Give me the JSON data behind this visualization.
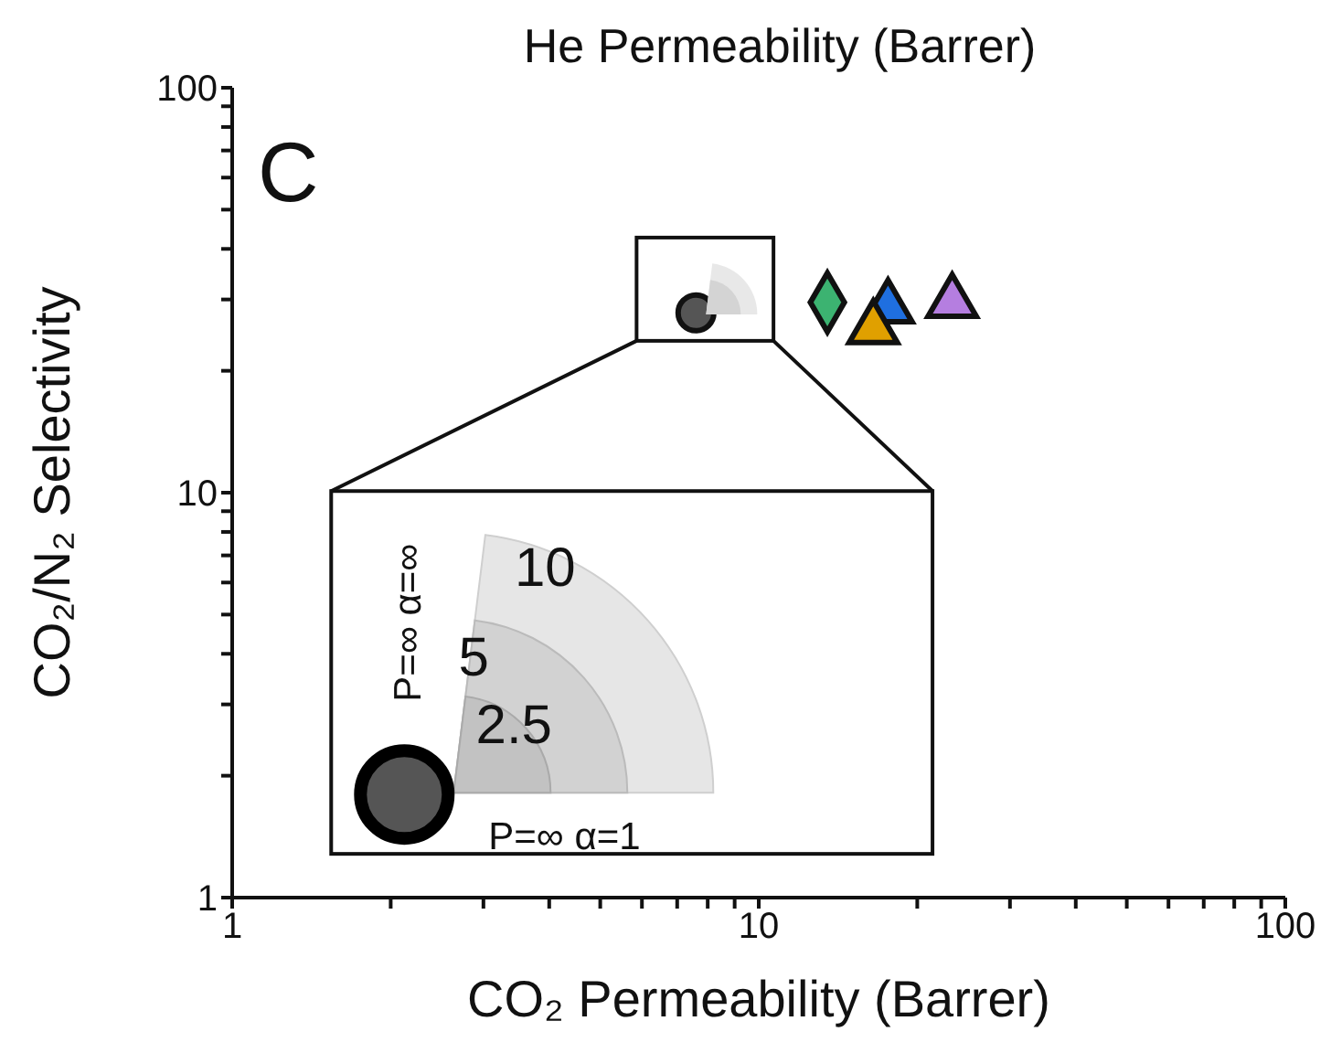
{
  "chart_data": {
    "type": "scatter",
    "xlabel": "CO₂ Permeability (Barrer)",
    "ylabel": "CO₂/N₂ Selectivity",
    "log": "xy",
    "grid": false,
    "legend": false,
    "xlim": [
      1,
      100
    ],
    "ylim": [
      1,
      100
    ],
    "xticks": [
      1,
      {
        "value": 2,
        "label": null
      },
      {
        "value": 3,
        "label": null
      },
      {
        "value": 4,
        "label": null
      },
      {
        "value": 5,
        "label": null
      },
      {
        "value": 6,
        "label": null
      },
      {
        "value": 7,
        "label": null
      },
      {
        "value": 8,
        "label": null
      },
      {
        "value": 9,
        "label": null
      },
      10,
      {
        "value": 20,
        "label": null
      },
      {
        "value": 30,
        "label": null
      },
      {
        "value": 40,
        "label": null
      },
      {
        "value": 50,
        "label": null
      },
      {
        "value": 60,
        "label": null
      },
      {
        "value": 70,
        "label": null
      },
      {
        "value": 80,
        "label": null
      },
      {
        "value": 90,
        "label": null
      },
      100
    ],
    "yticks": [
      1,
      {
        "value": 2,
        "label": null
      },
      {
        "value": 3,
        "label": null
      },
      {
        "value": 4,
        "label": null
      },
      {
        "value": 5,
        "label": null
      },
      {
        "value": 6,
        "label": null
      },
      {
        "value": 7,
        "label": null
      },
      {
        "value": 8,
        "label": null
      },
      {
        "value": 9,
        "label": null
      },
      10,
      {
        "value": 20,
        "label": null
      },
      {
        "value": 30,
        "label": null
      },
      {
        "value": 40,
        "label": null
      },
      {
        "value": 50,
        "label": null
      },
      {
        "value": 60,
        "label": null
      },
      {
        "value": 70,
        "label": null
      },
      {
        "value": 80,
        "label": null
      },
      {
        "value": 90,
        "label": null
      },
      100
    ],
    "series": [
      {
        "color": "#555555",
        "marker": "circle",
        "x": [
          7.6
        ],
        "values": [
          27.8
        ]
      },
      {
        "color": "#3cb371",
        "marker": "diamond",
        "x": [
          13.5
        ],
        "values": [
          29.5
        ]
      },
      {
        "color": "#1f6fe0",
        "marker": "triangle",
        "x": [
          17.6
        ],
        "values": [
          28.6
        ]
      },
      {
        "color": "#e0a000",
        "marker": "triangle",
        "x": [
          16.5
        ],
        "values": [
          25.4
        ]
      },
      {
        "color": "#b57ee0",
        "marker": "triangle",
        "x": [
          23.3
        ],
        "values": [
          29.5
        ]
      }
    ],
    "annotations": [
      "He Permeability (Barrer)",
      "C",
      "10",
      "5",
      "2.5",
      "P=∞ α=∞",
      "P=∞ α=1"
    ]
  }
}
